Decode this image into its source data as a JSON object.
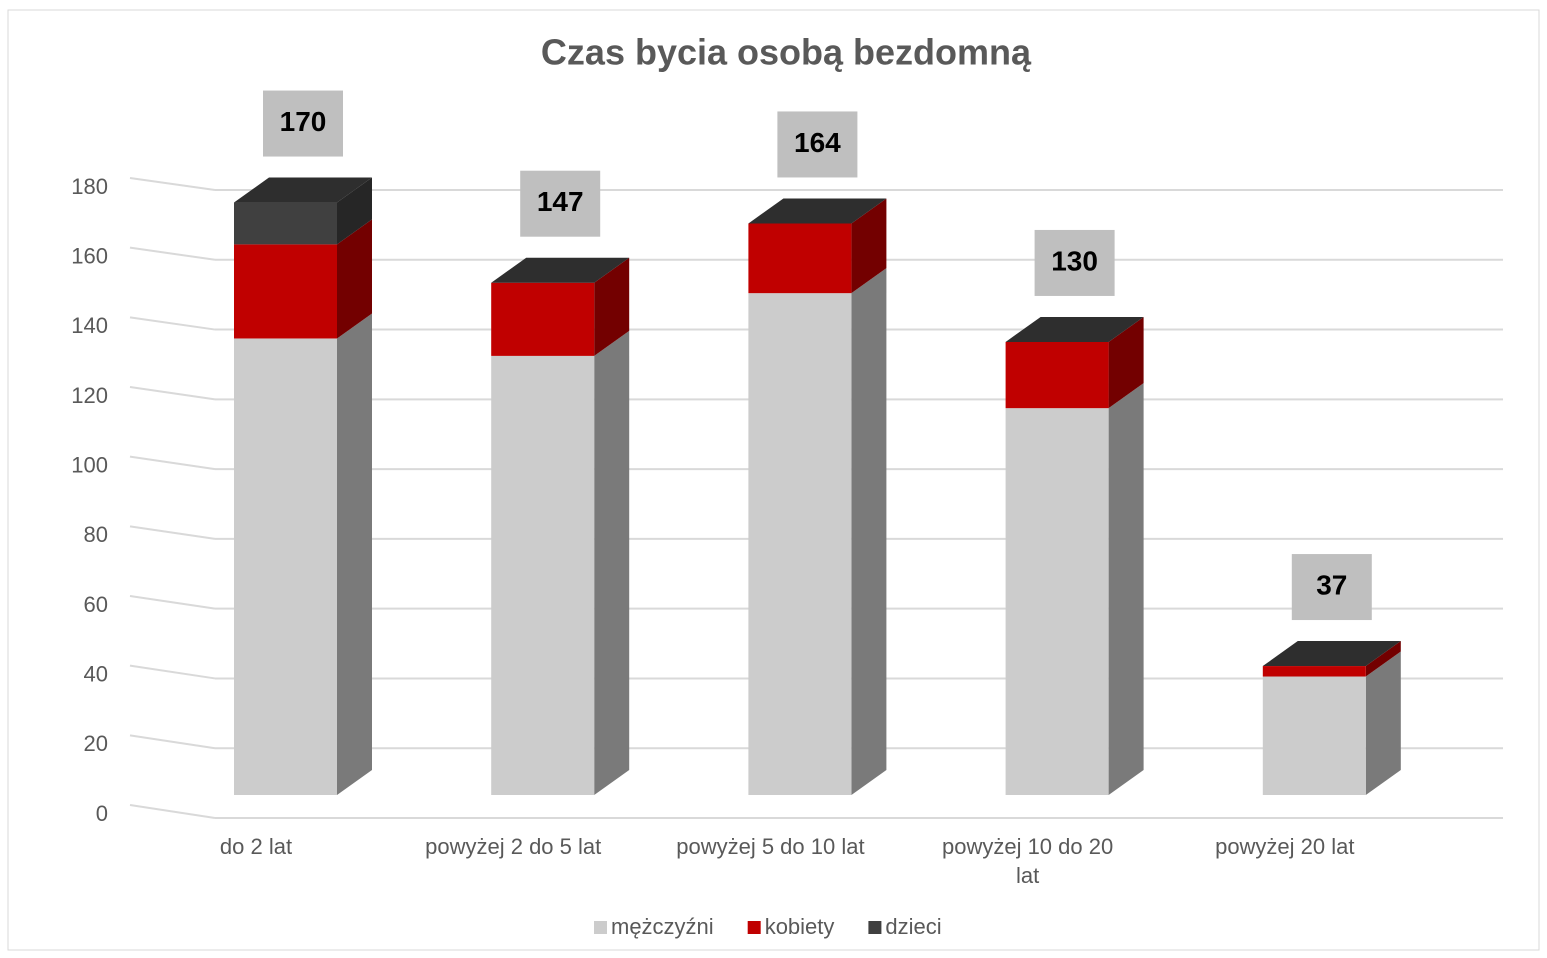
{
  "chart_data": {
    "type": "bar3d-stacked",
    "title": "Czas bycia osobą bezdomną",
    "categories": [
      "do 2 lat",
      "powyżej 2 do 5 lat",
      "powyżej 5 do 10 lat",
      "powyżej 10 do 20 lat",
      "powyżej 20 lat"
    ],
    "series": [
      {
        "name": "mężczyźni",
        "color": "#cccccc",
        "values": [
          131,
          126,
          144,
          111,
          34
        ]
      },
      {
        "name": "kobiety",
        "color": "#c00000",
        "values": [
          27,
          21,
          20,
          19,
          3
        ]
      },
      {
        "name": "dzieci",
        "color": "#404040",
        "values": [
          12,
          0,
          0,
          0,
          0
        ]
      }
    ],
    "totals": [
      170,
      147,
      164,
      130,
      37
    ],
    "ylim": [
      0,
      180
    ],
    "yticks": [
      0,
      20,
      40,
      60,
      80,
      100,
      120,
      140,
      160,
      180
    ],
    "grid": true,
    "legend": "bottom"
  }
}
